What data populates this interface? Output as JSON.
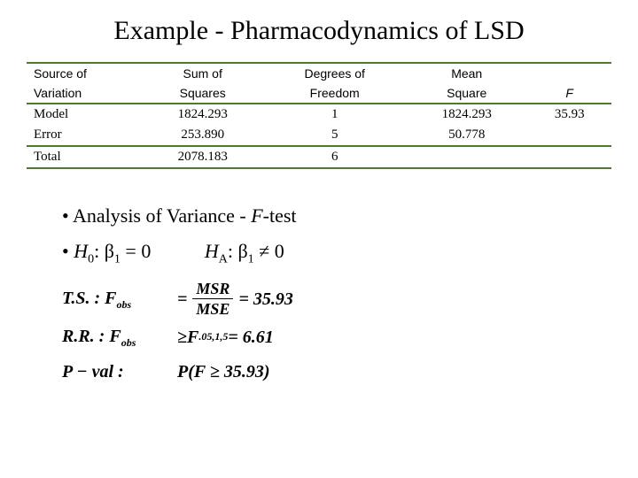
{
  "title": "Example - Pharmacodynamics of LSD",
  "anova": {
    "headers": {
      "col1a": "Source of",
      "col1b": "Variation",
      "col2a": "Sum of",
      "col2b": "Squares",
      "col3a": "Degrees of",
      "col3b": "Freedom",
      "col4a": "Mean",
      "col4b": "Square",
      "col5": "F"
    },
    "rows": {
      "model": {
        "label": "Model",
        "ss": "1824.293",
        "df": "1",
        "ms": "1824.293",
        "f": "35.93"
      },
      "error": {
        "label": "Error",
        "ss": "253.890",
        "df": "5",
        "ms": "50.778",
        "f": ""
      },
      "total": {
        "label": "Total",
        "ss": "2078.183",
        "df": "6",
        "ms": "",
        "f": ""
      }
    },
    "rule_color": "#4d7a2e"
  },
  "bullets": {
    "b1": "• Analysis of Variance - ",
    "b1_it": "F",
    "b1_tail": "-test",
    "h0_pref": "• ",
    "h0_H": "H",
    "h0_sub": "0",
    "h0_mid": ": β",
    "h0_bsub": "1",
    "h0_tail": " = 0",
    "ha_H": "H",
    "ha_sub": "A",
    "ha_mid": ": β",
    "ha_bsub": "1",
    "ha_tail": " ≠ 0"
  },
  "equations": {
    "ts_label": "T.S. : ",
    "F": "F",
    "obs": "obs",
    "msr": "MSR",
    "mse": "MSE",
    "ts_val": " = 35.93",
    "rr_label": "R.R. : ",
    "rr_geq": " ≥ ",
    "F_alpha": "F",
    "alpha_sub": ".05,1,5",
    "rr_val": " = 6.61",
    "pv_label": "P − val : ",
    "pv_expr1": "P(F ≥ 35.93)"
  }
}
